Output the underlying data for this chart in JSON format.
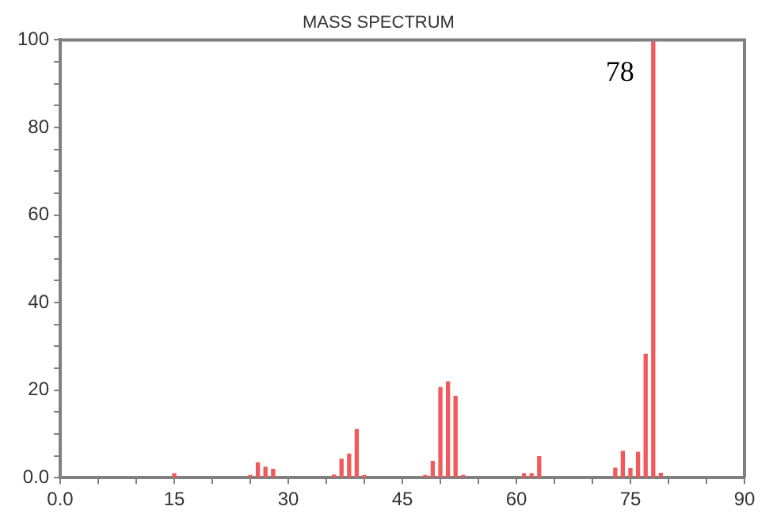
{
  "chart_data": {
    "type": "bar",
    "title": "MASS SPECTRUM",
    "color": "#f05a5a",
    "x": [
      15,
      25,
      26,
      27,
      28,
      36,
      37,
      38,
      39,
      40,
      48,
      49,
      50,
      51,
      52,
      53,
      61,
      62,
      63,
      73,
      74,
      75,
      76,
      77,
      78,
      79
    ],
    "values": [
      0.9,
      0.5,
      3.4,
      2.4,
      1.9,
      0.6,
      4.2,
      5.4,
      11,
      0.5,
      0.5,
      3.7,
      20.6,
      21.9,
      18.6,
      0.5,
      0.9,
      0.9,
      4.8,
      2.2,
      6,
      2.1,
      5.8,
      28.2,
      100,
      1
    ],
    "xlim": [
      0,
      90
    ],
    "xticks": [
      {
        "value": 0,
        "label": "0.0"
      },
      {
        "value": 5,
        "label": null
      },
      {
        "value": 10,
        "label": null
      },
      15,
      {
        "value": 20,
        "label": null
      },
      {
        "value": 25,
        "label": null
      },
      30,
      {
        "value": 35,
        "label": null
      },
      {
        "value": 40,
        "label": null
      },
      45,
      {
        "value": 50,
        "label": null
      },
      {
        "value": 55,
        "label": null
      },
      60,
      {
        "value": 65,
        "label": null
      },
      {
        "value": 70,
        "label": null
      },
      75,
      {
        "value": 80,
        "label": null
      },
      {
        "value": 85,
        "label": null
      },
      90
    ],
    "ylim": [
      0,
      100
    ],
    "yticks": [
      {
        "value": 0,
        "label": "0.0"
      },
      {
        "value": 5,
        "label": null
      },
      {
        "value": 10,
        "label": null
      },
      {
        "value": 15,
        "label": null
      },
      20,
      {
        "value": 25,
        "label": null
      },
      {
        "value": 30,
        "label": null
      },
      {
        "value": 35,
        "label": null
      },
      40,
      {
        "value": 45,
        "label": null
      },
      {
        "value": 50,
        "label": null
      },
      {
        "value": 55,
        "label": null
      },
      60,
      {
        "value": 65,
        "label": null
      },
      {
        "value": 70,
        "label": null
      },
      {
        "value": 75,
        "label": null
      },
      80,
      {
        "value": 85,
        "label": null
      },
      {
        "value": 90,
        "label": null
      },
      {
        "value": 95,
        "label": null
      },
      100
    ],
    "annotations": [
      {
        "text": "78",
        "x": 78,
        "y": 100
      }
    ]
  }
}
